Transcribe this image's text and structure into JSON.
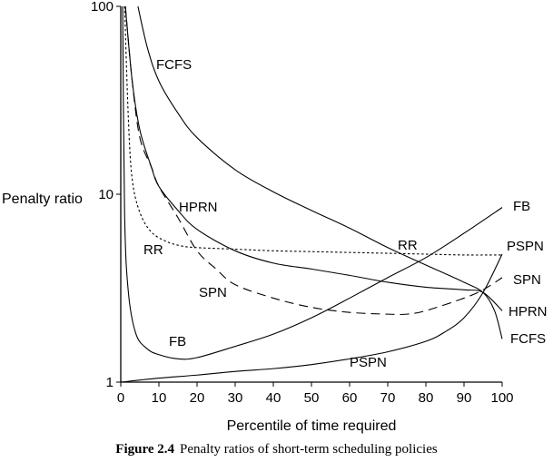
{
  "chart_data": {
    "type": "line",
    "xlabel": "Percentile of time required",
    "ylabel": "Penalty ratio",
    "xlim": [
      0,
      100
    ],
    "ylim": [
      1,
      100
    ],
    "yscale": "log",
    "x_ticks": [
      "0",
      "10",
      "20",
      "30",
      "40",
      "50",
      "60",
      "70",
      "80",
      "90",
      "100"
    ],
    "y_ticks": [
      "1",
      "10",
      "100"
    ],
    "grid": false,
    "legend": "none",
    "series": [
      {
        "name": "FCFS",
        "style": "solid",
        "x": [
          4.5,
          7,
          10,
          15,
          20,
          30,
          40,
          50,
          60,
          70,
          80,
          90,
          95,
          98,
          100
        ],
        "y": [
          100,
          60,
          40,
          27,
          20,
          13.5,
          10.3,
          8.2,
          6.6,
          5.2,
          4.2,
          3.4,
          3.0,
          2.4,
          1.7
        ]
      },
      {
        "name": "HPRN",
        "style": "solid",
        "x": [
          1.2,
          3,
          5,
          8,
          10,
          15,
          20,
          30,
          40,
          50,
          60,
          70,
          80,
          90,
          95,
          100
        ],
        "y": [
          100,
          40,
          22,
          14,
          11,
          8.2,
          6.5,
          5.0,
          4.3,
          4.0,
          3.7,
          3.4,
          3.2,
          3.1,
          3.0,
          2.4
        ]
      },
      {
        "name": "RR",
        "style": "dotted",
        "x": [
          1,
          2,
          3,
          5,
          8,
          12,
          16,
          20,
          30,
          40,
          50,
          60,
          70,
          80,
          90,
          100
        ],
        "y": [
          100,
          25,
          12,
          8,
          6.3,
          5.6,
          5.3,
          5.2,
          5.1,
          5.0,
          4.95,
          4.9,
          4.85,
          4.8,
          4.75,
          4.75
        ]
      },
      {
        "name": "SPN",
        "style": "dashed",
        "x": [
          1.2,
          3,
          5,
          8,
          10,
          15,
          20,
          25,
          30,
          40,
          50,
          60,
          70,
          75,
          80,
          90,
          95,
          100
        ],
        "y": [
          100,
          40,
          20,
          14,
          11,
          7.5,
          5,
          4.0,
          3.3,
          2.8,
          2.5,
          2.35,
          2.3,
          2.3,
          2.4,
          2.8,
          3.1,
          3.6
        ]
      },
      {
        "name": "FB",
        "style": "solid",
        "x": [
          0.5,
          1,
          2,
          4,
          7,
          10,
          15,
          20,
          30,
          40,
          50,
          60,
          70,
          80,
          90,
          100
        ],
        "y": [
          100,
          8,
          3,
          1.8,
          1.5,
          1.4,
          1.33,
          1.35,
          1.55,
          1.8,
          2.2,
          2.8,
          3.6,
          4.6,
          6.2,
          8.5
        ]
      },
      {
        "name": "PSPN",
        "style": "solid",
        "x": [
          0,
          10,
          20,
          30,
          40,
          50,
          60,
          70,
          80,
          85,
          90,
          95,
          100
        ],
        "y": [
          1,
          1.05,
          1.09,
          1.14,
          1.18,
          1.24,
          1.33,
          1.45,
          1.65,
          1.85,
          2.2,
          3.0,
          4.8
        ]
      }
    ],
    "annotations": [
      "FCFS",
      "HPRN",
      "RR",
      "SPN",
      "FB",
      "PSPN",
      "RR",
      "FB",
      "PSPN",
      "SPN",
      "HPRN",
      "FCFS"
    ]
  },
  "caption": {
    "label": "Figure 2.4",
    "text": "Penalty ratios of short-term scheduling policies"
  }
}
